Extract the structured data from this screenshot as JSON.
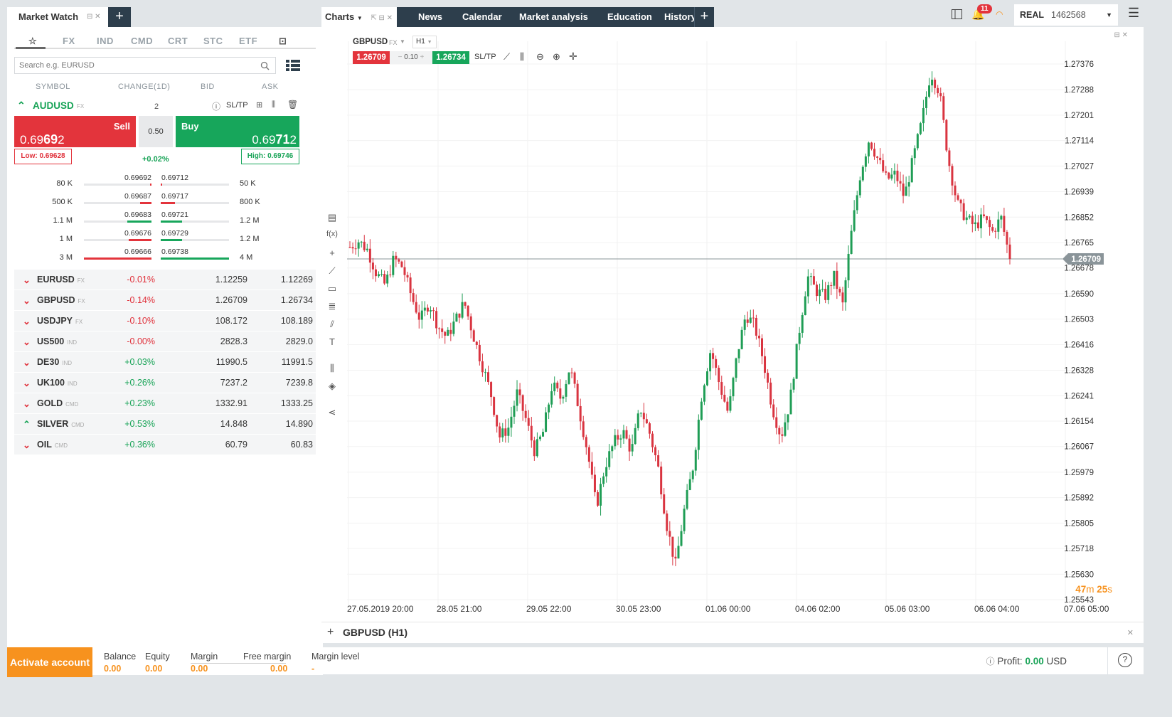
{
  "market_watch": {
    "title": "Market Watch",
    "categories": [
      "FX",
      "IND",
      "CMD",
      "CRT",
      "STC",
      "ETF"
    ],
    "search_placeholder": "Search e.g. EURUSD",
    "columns": [
      "SYMBOL",
      "CHANGE(1D)",
      "BID",
      "ASK"
    ],
    "expanded": {
      "symbol": "AUDUSD",
      "type": "FX",
      "count": "2",
      "sltp": "SL/TP",
      "sell_label": "Sell",
      "sell_price_main": "0.69",
      "sell_price_big": "69",
      "sell_price_last": "2",
      "buy_label": "Buy",
      "buy_price_main": "0.69",
      "buy_price_big": "71",
      "buy_price_last": "2",
      "spread": "0.50",
      "low": "Low: 0.69628",
      "change": "+0.02%",
      "high": "High: 0.69746",
      "depth": [
        {
          "vol_l": "80 K",
          "bid": "0.69692",
          "ask": "0.69712",
          "vol_r": "50 K"
        },
        {
          "vol_l": "500 K",
          "bid": "0.69687",
          "ask": "0.69717",
          "vol_r": "800 K"
        },
        {
          "vol_l": "1.1 M",
          "bid": "0.69683",
          "ask": "0.69721",
          "vol_r": "1.2 M"
        },
        {
          "vol_l": "1 M",
          "bid": "0.69676",
          "ask": "0.69729",
          "vol_r": "1.2 M"
        },
        {
          "vol_l": "3 M",
          "bid": "0.69666",
          "ask": "0.69738",
          "vol_r": "4 M"
        }
      ]
    },
    "rows": [
      {
        "symbol": "EURUSD",
        "type": "FX",
        "change": "-0.01%",
        "bid": "1.12259",
        "ask": "1.12269",
        "dir": "down"
      },
      {
        "symbol": "GBPUSD",
        "type": "FX",
        "change": "-0.14%",
        "bid": "1.26709",
        "ask": "1.26734",
        "dir": "down"
      },
      {
        "symbol": "USDJPY",
        "type": "FX",
        "change": "-0.10%",
        "bid": "108.172",
        "ask": "108.189",
        "dir": "down"
      },
      {
        "symbol": "US500",
        "type": "IND",
        "change": "-0.00%",
        "bid": "2828.3",
        "ask": "2829.0",
        "dir": "down"
      },
      {
        "symbol": "DE30",
        "type": "IND",
        "change": "+0.03%",
        "bid": "11990.5",
        "ask": "11991.5",
        "dir": "down"
      },
      {
        "symbol": "UK100",
        "type": "IND",
        "change": "+0.26%",
        "bid": "7237.2",
        "ask": "7239.8",
        "dir": "down"
      },
      {
        "symbol": "GOLD",
        "type": "CMD",
        "change": "+0.23%",
        "bid": "1332.91",
        "ask": "1333.25",
        "dir": "down"
      },
      {
        "symbol": "SILVER",
        "type": "CMD",
        "change": "+0.53%",
        "bid": "14.848",
        "ask": "14.890",
        "dir": "up"
      },
      {
        "symbol": "OIL",
        "type": "CMD",
        "change": "+0.36%",
        "bid": "60.79",
        "ask": "60.83",
        "dir": "down"
      }
    ]
  },
  "nav": {
    "charts_label": "Charts",
    "items": [
      "News",
      "Calendar",
      "Market analysis",
      "Education",
      "History"
    ]
  },
  "account": {
    "notifications": "11",
    "type": "REAL",
    "number": "1462568"
  },
  "chart": {
    "symbol": "GBPUSD",
    "type": "FX",
    "timeframe": "H1",
    "sell_price": "1.26709",
    "spread": "0.10",
    "buy_price": "1.26734",
    "sltp": "SL/TP",
    "current_price_tag": "1.26709",
    "countdown_m": "47",
    "countdown_s": "25",
    "footer_title": "GBPUSD (H1)"
  },
  "chart_data": {
    "type": "candlestick",
    "y_ticks": [
      "1.27376",
      "1.27288",
      "1.27201",
      "1.27114",
      "1.27027",
      "1.26939",
      "1.26852",
      "1.26765",
      "1.26678",
      "1.26590",
      "1.26503",
      "1.26416",
      "1.26328",
      "1.26241",
      "1.26154",
      "1.26067",
      "1.25979",
      "1.25892",
      "1.25805",
      "1.25718",
      "1.25630",
      "1.25543"
    ],
    "x_ticks": [
      "27.05.2019 20:00",
      "28.05 21:00",
      "29.05 22:00",
      "30.05 23:00",
      "01.06 00:00",
      "04.06 02:00",
      "05.06 03:00",
      "06.06 04:00",
      "07.06 05:00"
    ],
    "ylim": [
      1.2553,
      1.2744
    ],
    "current": 1.26709,
    "path": [
      1.2675,
      1.2677,
      1.2674,
      1.2666,
      1.2662,
      1.2671,
      1.2668,
      1.2658,
      1.265,
      1.2656,
      1.2648,
      1.2644,
      1.265,
      1.2656,
      1.2645,
      1.2635,
      1.2625,
      1.261,
      1.2613,
      1.2625,
      1.2616,
      1.2605,
      1.2612,
      1.2628,
      1.2623,
      1.2634,
      1.262,
      1.2605,
      1.2586,
      1.26,
      1.2608,
      1.2612,
      1.2605,
      1.262,
      1.2612,
      1.26,
      1.258,
      1.2566,
      1.2585,
      1.26,
      1.2625,
      1.264,
      1.2628,
      1.2618,
      1.2638,
      1.2652,
      1.2648,
      1.2636,
      1.262,
      1.261,
      1.2622,
      1.2645,
      1.2665,
      1.266,
      1.2658,
      1.2665,
      1.2655,
      1.268,
      1.27,
      1.2712,
      1.2705,
      1.2698,
      1.27,
      1.2692,
      1.2705,
      1.2718,
      1.2735,
      1.2728,
      1.2705,
      1.269,
      1.2685,
      1.2682,
      1.2685,
      1.268,
      1.2685,
      1.26709
    ]
  },
  "bottom": {
    "activate": "Activate account",
    "balance_label": "Balance",
    "balance": "0.00",
    "equity_label": "Equity",
    "equity": "0.00",
    "margin_label": "Margin",
    "margin": "0.00",
    "free_margin_label": "Free margin",
    "free_margin": "0.00",
    "margin_level_label": "Margin level",
    "margin_level": "-",
    "profit_label": "Profit:",
    "profit": "0.00",
    "currency": "USD"
  }
}
